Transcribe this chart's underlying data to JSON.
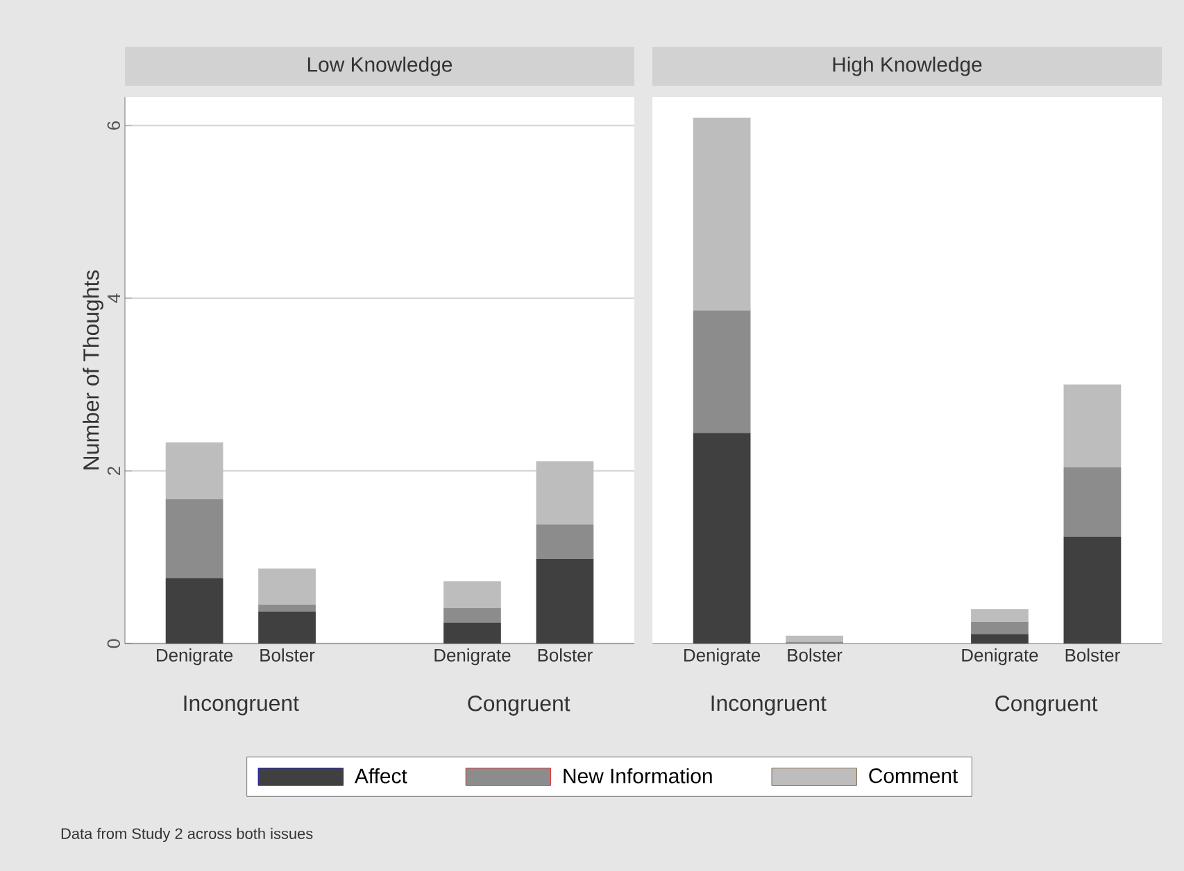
{
  "chart_data": [
    {
      "type": "bar",
      "title": "Low Knowledge",
      "ylabel": "Number of Thoughts",
      "stacked": true,
      "categories": [
        "Denigrate",
        "Bolster",
        null,
        "Denigrate",
        "Bolster"
      ],
      "series": [
        {
          "name": "Affect",
          "color": "#404040",
          "values": [
            0.76,
            0.37,
            null,
            0.24,
            0.98
          ]
        },
        {
          "name": "New Information",
          "color": "#8c8c8c",
          "values": [
            0.91,
            0.08,
            null,
            0.17,
            0.4
          ]
        },
        {
          "name": "Comment",
          "color": "#bdbdbd",
          "values": [
            0.66,
            0.42,
            null,
            0.31,
            0.73
          ]
        }
      ],
      "ylim": [
        0,
        6.33
      ],
      "yticks": [
        0,
        2,
        4,
        6
      ],
      "grid": "y",
      "legend": "bottom",
      "annotations": [
        "Incongruent",
        "Congruent",
        "Data from Study 2 across both issues"
      ]
    },
    {
      "type": "bar",
      "title": "High Knowledge",
      "stacked": true,
      "categories": [
        "Denigrate",
        "Bolster",
        null,
        "Denigrate",
        "Bolster"
      ],
      "series": [
        {
          "color": "#404040",
          "values": [
            2.44,
            0,
            null,
            0.11,
            1.24
          ]
        },
        {
          "color": "#8c8c8c",
          "values": [
            1.42,
            0.02,
            null,
            0.14,
            0.8
          ]
        },
        {
          "color": "#bdbdbd",
          "values": [
            2.23,
            0.07,
            null,
            0.15,
            0.96
          ]
        }
      ],
      "ylim": [
        0,
        6.33
      ],
      "yticks": [
        0,
        2,
        4,
        6
      ],
      "grid": "y",
      "tick_labels": "x",
      "annotations": [
        "Incongruent",
        "Congruent"
      ]
    }
  ]
}
